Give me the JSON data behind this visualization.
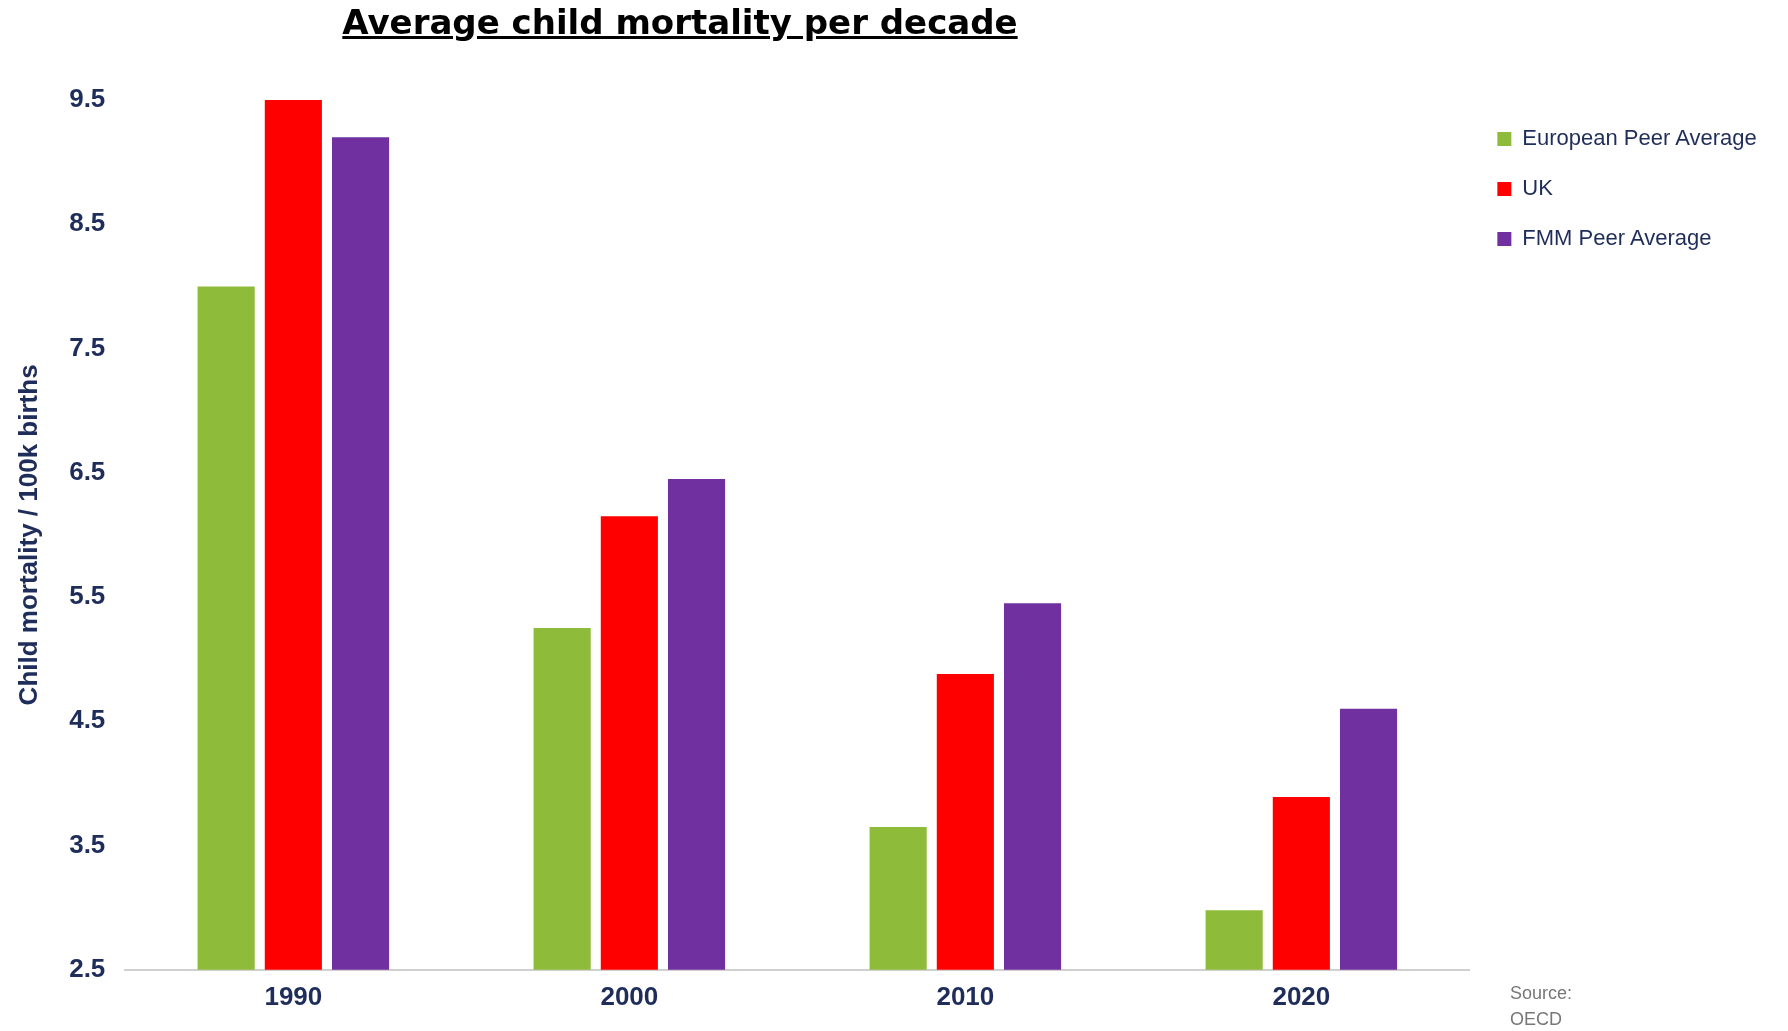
{
  "chart_data": {
    "type": "bar",
    "title": "Average child mortality per decade",
    "ylabel": "Child mortality / 100k births",
    "categories": [
      "1990",
      "2000",
      "2010",
      "2020"
    ],
    "series": [
      {
        "name": "European Peer Average",
        "color": "#8fbb3a",
        "values": [
          8.0,
          5.25,
          3.65,
          2.98
        ]
      },
      {
        "name": "UK",
        "color": "#ff0000",
        "values": [
          9.5,
          6.15,
          4.88,
          3.89
        ]
      },
      {
        "name": "FMM Peer Average",
        "color": "#7030a0",
        "values": [
          9.2,
          6.45,
          5.45,
          4.6
        ]
      }
    ],
    "ylim": [
      2.5,
      9.5
    ],
    "yticks": [
      2.5,
      3.5,
      4.5,
      5.5,
      6.5,
      7.5,
      8.5,
      9.5
    ],
    "grid": false,
    "legend": "top right",
    "annotations": [
      "Source:\nOECD"
    ]
  }
}
